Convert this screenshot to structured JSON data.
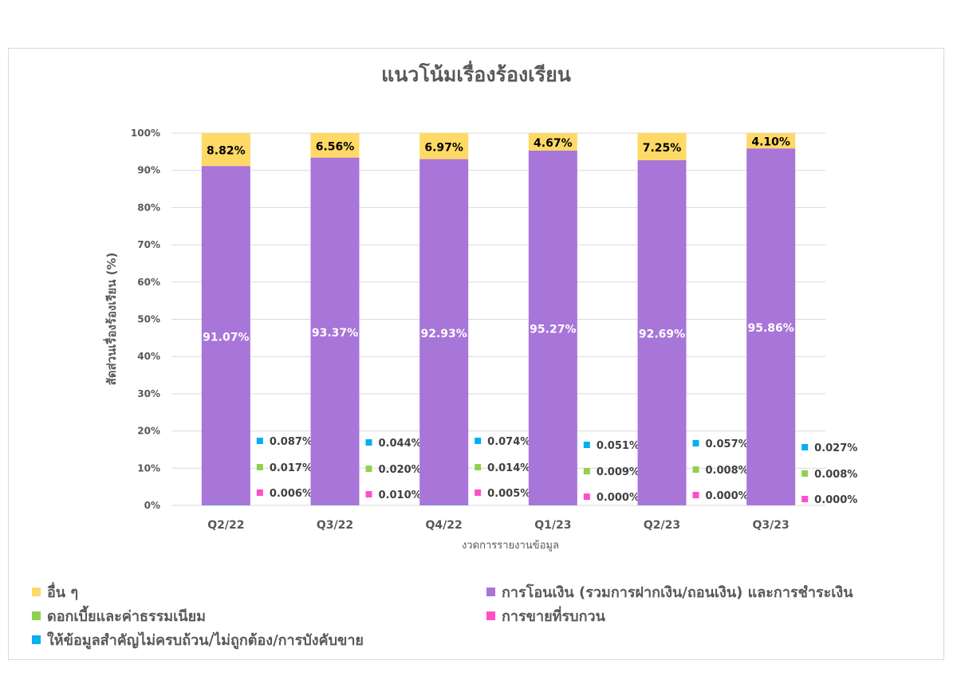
{
  "chart_data": {
    "type": "bar",
    "stacked": true,
    "title": "แนวโน้มเรื่องร้องเรียน",
    "xlabel": "งวดการรายงานข้อมูล",
    "ylabel": "สัดส่วนเรื่องร้องเรียน (%)",
    "ylim": [
      0,
      100
    ],
    "yticks": [
      "0%",
      "10%",
      "20%",
      "30%",
      "40%",
      "50%",
      "60%",
      "70%",
      "80%",
      "90%",
      "100%"
    ],
    "grid": true,
    "legend_position": "bottom",
    "categories": [
      "Q2/22",
      "Q3/22",
      "Q4/22",
      "Q1/23",
      "Q2/23",
      "Q3/23"
    ],
    "series": [
      {
        "name": "การขายที่รบกวน",
        "color": "#ff4fc8",
        "values": [
          0.006,
          0.01,
          0.005,
          0.0,
          0.0,
          0.0
        ],
        "labels": [
          "0.006%",
          "0.010%",
          "0.005%",
          "0.000%",
          "0.000%",
          "0.000%"
        ]
      },
      {
        "name": "ดอกเบี้ยและค่าธรรมเนียม",
        "color": "#8fd14f",
        "values": [
          0.017,
          0.02,
          0.014,
          0.009,
          0.008,
          0.008
        ],
        "labels": [
          "0.017%",
          "0.020%",
          "0.014%",
          "0.009%",
          "0.008%",
          "0.008%"
        ]
      },
      {
        "name": "ให้ข้อมูลสำคัญไม่ครบถ้วน/ไม่ถูกต้อง/การบังคับขาย",
        "color": "#00b0f0",
        "values": [
          0.087,
          0.044,
          0.074,
          0.051,
          0.057,
          0.027
        ],
        "labels": [
          "0.087%",
          "0.044%",
          "0.074%",
          "0.051%",
          "0.057%",
          "0.027%"
        ]
      },
      {
        "name": "การโอนเงิน (รวมการฝากเงิน/ถอนเงิน) และการชำระเงิน",
        "color": "#a875d8",
        "values": [
          91.07,
          93.37,
          92.93,
          95.27,
          92.69,
          95.86
        ],
        "labels": [
          "91.07%",
          "93.37%",
          "92.93%",
          "95.27%",
          "92.69%",
          "95.86%"
        ]
      },
      {
        "name": "อื่น ๆ",
        "color": "#ffd966",
        "values": [
          8.82,
          6.56,
          6.97,
          4.67,
          7.25,
          4.1
        ],
        "labels": [
          "8.82%",
          "6.56%",
          "6.97%",
          "4.67%",
          "7.25%",
          "4.10%"
        ]
      }
    ]
  },
  "legend": [
    {
      "label": "อื่น ๆ",
      "color": "#ffd966"
    },
    {
      "label": "การโอนเงิน (รวมการฝากเงิน/ถอนเงิน) และการชำระเงิน",
      "color": "#a875d8"
    },
    {
      "label": "ดอกเบี้ยและค่าธรรมเนียม",
      "color": "#8fd14f"
    },
    {
      "label": "การขายที่รบกวน",
      "color": "#ff4fc8"
    },
    {
      "label": "ให้ข้อมูลสำคัญไม่ครบถ้วน/ไม่ถูกต้อง/การบังคับขาย",
      "color": "#00b0f0"
    }
  ]
}
